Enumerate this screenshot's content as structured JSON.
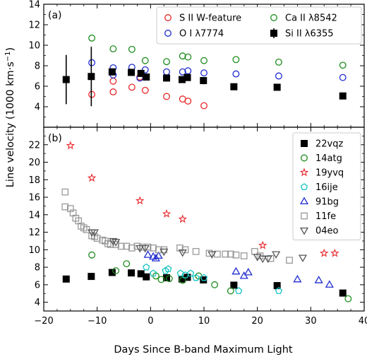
{
  "figure": {
    "ylabel_main": "Line velocity (1000 km·s",
    "ylabel_sup": "−1",
    "ylabel_close": ")",
    "xlabel": "Days Since B-band Maximum Light"
  },
  "chart_data": [
    {
      "panel": "(a)",
      "type": "scatter",
      "xlim": [
        -20,
        40
      ],
      "ylim": [
        2,
        14
      ],
      "x_ticks": [
        -20,
        -10,
        0,
        10,
        20,
        30,
        40
      ],
      "y_ticks": [
        4,
        6,
        8,
        10,
        12,
        14
      ],
      "legend_position": "top-right",
      "legend_columns": 2,
      "series": [
        {
          "name": "S II W-feature",
          "color": "#e8272a",
          "marker": "circle-open",
          "points": [
            [
              -11,
              5.2
            ],
            [
              -7,
              5.45
            ],
            [
              -7,
              6.5
            ],
            [
              -3.5,
              5.9
            ],
            [
              -2,
              6.9
            ],
            [
              -1,
              5.6
            ],
            [
              3,
              5.0
            ],
            [
              6,
              4.75
            ],
            [
              7,
              4.55
            ],
            [
              10,
              4.1
            ]
          ]
        },
        {
          "name": "O I λ7774",
          "color": "#1f2bd0",
          "marker": "circle-open",
          "points": [
            [
              -11,
              8.3
            ],
            [
              -7,
              7.8
            ],
            [
              -7,
              7.1
            ],
            [
              -3.5,
              7.85
            ],
            [
              -2,
              6.8
            ],
            [
              -1,
              7.6
            ],
            [
              3,
              7.4
            ],
            [
              6,
              7.4
            ],
            [
              7,
              7.5
            ],
            [
              10,
              7.3
            ],
            [
              16,
              7.2
            ],
            [
              24,
              7.0
            ],
            [
              36,
              6.85
            ]
          ]
        },
        {
          "name": "Ca II λ8542",
          "color": "#1e8c1e",
          "marker": "circle-open",
          "points": [
            [
              -11,
              10.7
            ],
            [
              -7,
              9.65
            ],
            [
              -3.5,
              9.6
            ],
            [
              -1,
              8.5
            ],
            [
              3,
              8.4
            ],
            [
              6,
              8.95
            ],
            [
              7,
              8.85
            ],
            [
              10,
              8.5
            ],
            [
              16,
              8.6
            ],
            [
              24,
              8.35
            ],
            [
              36,
              8.05
            ]
          ]
        },
        {
          "name": "Si II λ6355",
          "color": "#000000",
          "marker": "square-filled",
          "points": [
            [
              -15.8,
              6.65,
              2.4
            ],
            [
              -11.1,
              6.95,
              2.9
            ],
            [
              -7.2,
              7.4,
              0.35
            ],
            [
              -3.6,
              7.35,
              0.35
            ],
            [
              -1.8,
              7.25,
              0.3
            ],
            [
              -0.8,
              6.9,
              0.35
            ],
            [
              3.0,
              6.8,
              0.3
            ],
            [
              5.9,
              6.65,
              0.3
            ],
            [
              6.9,
              6.85,
              0.3
            ],
            [
              9.9,
              6.55,
              0.35
            ],
            [
              15.6,
              5.95,
              0.2
            ],
            [
              23.7,
              5.9,
              0.3
            ],
            [
              36.0,
              5.05,
              0.3
            ]
          ]
        }
      ]
    },
    {
      "panel": "(b)",
      "type": "scatter",
      "xlim": [
        -20,
        40
      ],
      "ylim": [
        3,
        24
      ],
      "x_ticks": [
        -20,
        -10,
        0,
        10,
        20,
        30,
        40
      ],
      "x_tick_labels": [
        "−20",
        "−10",
        "0",
        "10",
        "20",
        "30",
        "40"
      ],
      "y_ticks": [
        4,
        6,
        8,
        10,
        12,
        14,
        16,
        18,
        20,
        22
      ],
      "legend_position": "top-right",
      "series": [
        {
          "name": "22vqz",
          "color": "#000000",
          "marker": "square-filled",
          "points": [
            [
              -15.8,
              6.65
            ],
            [
              -11.1,
              6.95
            ],
            [
              -7.2,
              7.4
            ],
            [
              -3.6,
              7.35
            ],
            [
              -1.8,
              7.25
            ],
            [
              -0.8,
              6.9
            ],
            [
              3.0,
              6.8
            ],
            [
              5.9,
              6.65
            ],
            [
              6.9,
              6.85
            ],
            [
              9.9,
              6.55
            ],
            [
              15.6,
              5.95
            ],
            [
              23.7,
              5.9
            ],
            [
              36.0,
              5.05
            ]
          ]
        },
        {
          "name": "14atg",
          "color": "#1e8c1e",
          "marker": "circle-open",
          "points": [
            [
              -11,
              9.4
            ],
            [
              -6.5,
              7.6
            ],
            [
              -4.5,
              8.4
            ],
            [
              1,
              7.0
            ],
            [
              2,
              6.6
            ],
            [
              3.5,
              6.7
            ],
            [
              6,
              6.5
            ],
            [
              9,
              7.0
            ],
            [
              12,
              6.0
            ],
            [
              15,
              5.3
            ],
            [
              37,
              4.4
            ]
          ]
        },
        {
          "name": "19yvq",
          "color": "#e8272a",
          "marker": "star-open",
          "points": [
            [
              -15,
              21.9
            ],
            [
              -11,
              18.2
            ],
            [
              -2,
              15.6
            ],
            [
              3,
              14.1
            ],
            [
              6,
              13.5
            ],
            [
              21,
              10.5
            ],
            [
              32.5,
              9.6
            ],
            [
              34.5,
              9.6
            ]
          ]
        },
        {
          "name": "16ije",
          "color": "#16c4c4",
          "marker": "pentagon-open",
          "points": [
            [
              -0.8,
              8.0
            ],
            [
              0.5,
              7.3
            ],
            [
              2.8,
              7.6
            ],
            [
              3.3,
              7.8
            ],
            [
              5.6,
              7.3
            ],
            [
              6.5,
              7.1
            ],
            [
              7.5,
              7.3
            ],
            [
              8.5,
              6.8
            ],
            [
              10,
              6.8
            ],
            [
              16.5,
              5.3
            ],
            [
              24,
              5.3
            ]
          ]
        },
        {
          "name": "91bg",
          "color": "#1f2bd0",
          "marker": "triangle-up-open",
          "points": [
            [
              -0.5,
              9.4
            ],
            [
              0.5,
              9.2
            ],
            [
              1.0,
              9.0
            ],
            [
              1.5,
              9.3
            ],
            [
              16.0,
              7.5
            ],
            [
              17.5,
              7.0
            ],
            [
              18.3,
              7.4
            ],
            [
              27.5,
              6.6
            ],
            [
              31.5,
              6.5
            ],
            [
              33.5,
              6.0
            ]
          ]
        },
        {
          "name": "11fe",
          "color": "#999999",
          "marker": "square-open",
          "points": [
            [
              -16,
              16.6
            ],
            [
              -16,
              14.9
            ],
            [
              -15,
              14.7
            ],
            [
              -14.5,
              14.2
            ],
            [
              -14,
              13.6
            ],
            [
              -13.5,
              13.3
            ],
            [
              -13,
              12.7
            ],
            [
              -12.5,
              12.5
            ],
            [
              -12,
              12.3
            ],
            [
              -11,
              11.6
            ],
            [
              -10.5,
              11.5
            ],
            [
              -10,
              11.3
            ],
            [
              -9,
              11.1
            ],
            [
              -8.5,
              11.0
            ],
            [
              -8,
              10.7
            ],
            [
              -7.5,
              10.6
            ],
            [
              -6.5,
              10.6
            ],
            [
              -5.5,
              10.4
            ],
            [
              -4.5,
              10.4
            ],
            [
              -3.5,
              10.2
            ],
            [
              -2.5,
              10.4
            ],
            [
              -1.5,
              10.3
            ],
            [
              -0.5,
              10.3
            ],
            [
              0.5,
              10.2
            ],
            [
              1.5,
              10.0
            ],
            [
              2.5,
              10.0
            ],
            [
              5.5,
              10.2
            ],
            [
              6.5,
              10.0
            ],
            [
              8.5,
              9.8
            ],
            [
              11,
              9.6
            ],
            [
              12.5,
              9.5
            ],
            [
              14,
              9.5
            ],
            [
              15,
              9.5
            ],
            [
              16,
              9.4
            ],
            [
              17.5,
              9.3
            ],
            [
              19.5,
              9.8
            ],
            [
              20.5,
              9.3
            ],
            [
              22.5,
              9.0
            ],
            [
              26,
              8.8
            ]
          ]
        },
        {
          "name": "04eo",
          "color": "#555555",
          "marker": "triangle-down-open",
          "points": [
            [
              -11,
              12.0
            ],
            [
              -10.5,
              12.0
            ],
            [
              -7,
              11.0
            ],
            [
              -6.5,
              10.9
            ],
            [
              -2,
              10.2
            ],
            [
              -1,
              10.2
            ],
            [
              2.5,
              9.8
            ],
            [
              6,
              9.7
            ],
            [
              11.5,
              9.5
            ],
            [
              20,
              9.2
            ],
            [
              21,
              9.0
            ],
            [
              22,
              9.0
            ],
            [
              23.5,
              9.5
            ],
            [
              28.5,
              9.1
            ]
          ]
        }
      ]
    }
  ]
}
